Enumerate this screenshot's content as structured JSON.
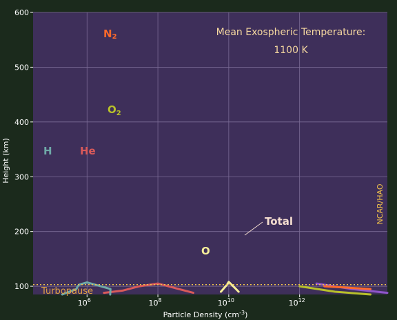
{
  "chart_data": {
    "type": "line",
    "xscale": "log",
    "xlim": [
      30000,
      300000000000000.0
    ],
    "ylim": [
      85,
      600
    ],
    "xlabel": "Particle Density (cm",
    "xlabel_sup": "-3",
    "xlabel_close": ")",
    "ylabel": "Height (km)",
    "x_ticks": [
      {
        "value": 1000000.0,
        "base": "10",
        "exp": "6"
      },
      {
        "value": 100000000.0,
        "base": "10",
        "exp": "8"
      },
      {
        "value": 10000000000.0,
        "base": "10",
        "exp": "10"
      },
      {
        "value": 1000000000000.0,
        "base": "10",
        "exp": "12"
      }
    ],
    "y_ticks": [
      {
        "value": 100,
        "label": "100"
      },
      {
        "value": 200,
        "label": "200"
      },
      {
        "value": 300,
        "label": "300"
      },
      {
        "value": 400,
        "label": "400"
      },
      {
        "value": 500,
        "label": "500"
      },
      {
        "value": 600,
        "label": "600"
      }
    ],
    "grid": true,
    "annotations": {
      "title_line1": "Mean Exospheric Temperature:",
      "title_line2": "1100 K",
      "credit": "NCAR/HAO",
      "turbopause_label": "Turbopause",
      "turbopause_height": 103
    },
    "series": [
      {
        "key": "H",
        "name": "H",
        "color": "#6fa9a8",
        "points": [
          [
            200000.0,
            85
          ],
          [
            500000.0,
            95
          ],
          [
            550000.0,
            100
          ],
          [
            600000.0,
            103
          ],
          [
            1000000.0,
            107
          ],
          [
            4600000.0,
            95
          ],
          [
            4500000.0,
            85
          ]
        ]
      },
      {
        "key": "He",
        "name": "He",
        "color": "#d95a5a",
        "points": [
          [
            3000000.0,
            88
          ],
          [
            10000000.0,
            92
          ],
          [
            30000000.0,
            100
          ],
          [
            100000000.0,
            105
          ],
          [
            1000000000.0,
            88
          ]
        ]
      },
      {
        "key": "O",
        "name": "O",
        "color": "#f7ef9a",
        "points": [
          [
            6000000000.0,
            90
          ],
          [
            9000000000.0,
            103
          ],
          [
            10000000000.0,
            108
          ],
          [
            12000000000.0,
            103
          ],
          [
            16000000000.0,
            95
          ],
          [
            19000000000.0,
            90
          ]
        ]
      },
      {
        "key": "O2",
        "name": "O",
        "name_sub": "2",
        "color": "#b8c12a",
        "points": [
          [
            1000000000000.0,
            100
          ],
          [
            10000000000000.0,
            90
          ],
          [
            100000000000000.0,
            85
          ]
        ]
      },
      {
        "key": "N2",
        "name": "N",
        "name_sub": "2",
        "color": "#ff6a2b",
        "points": [
          [
            5000000000000.0,
            100
          ],
          [
            100000000000000.0,
            95
          ]
        ]
      },
      {
        "key": "Total",
        "name": "Total",
        "color": "#8e55c9",
        "points": [
          [
            3000000000000.0,
            105
          ],
          [
            30000000000000.0,
            95
          ],
          [
            300000000000000.0,
            88
          ]
        ]
      }
    ]
  }
}
